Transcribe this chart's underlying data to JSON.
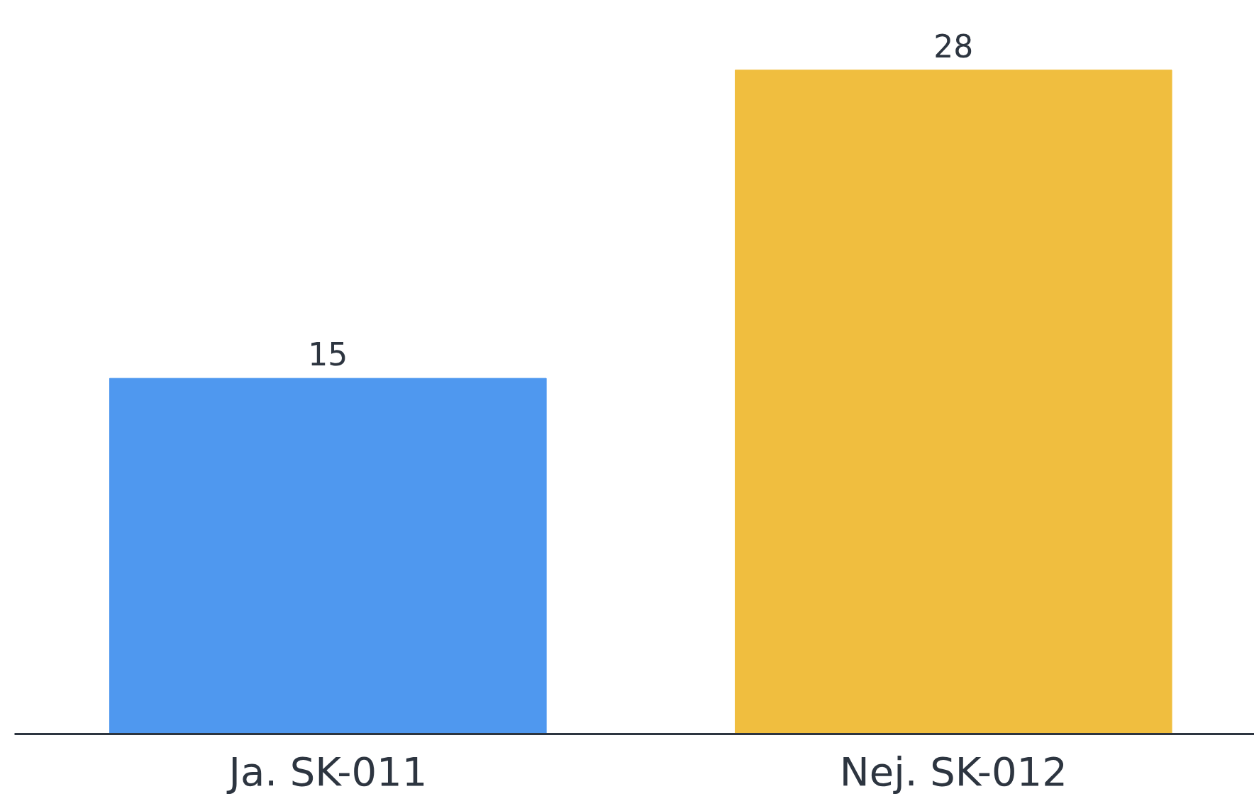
{
  "chart_data": {
    "type": "bar",
    "categories": [
      "Ja. SK-011",
      "Nej. SK-012"
    ],
    "values": [
      15,
      28
    ],
    "colors": [
      "#4f98ef",
      "#f0be3f"
    ],
    "data_labels": true,
    "grid": false
  }
}
